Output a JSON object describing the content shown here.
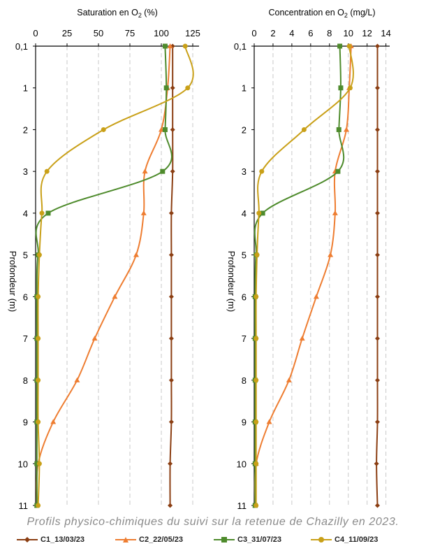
{
  "colors": {
    "C1": "#8b3e12",
    "C2": "#ee7d31",
    "C3": "#4e8b2c",
    "C4": "#c9a018",
    "grid": "#c8c8c8"
  },
  "chart_data": [
    {
      "type": "line",
      "title": "Saturation en O₂ (%)",
      "xlabel": "Saturation en O₂ (%)",
      "ylabel": "Profondeur (m)",
      "xlim": [
        0,
        130
      ],
      "x_ticks": [
        0,
        25,
        50,
        75,
        100,
        125
      ],
      "x_tick_labels": [
        "0",
        "25",
        "50",
        "75",
        "100",
        "125"
      ],
      "y_categories": [
        "0,1",
        "1",
        "2",
        "3",
        "4",
        "5",
        "6",
        "7",
        "8",
        "9",
        "10",
        "11"
      ],
      "grid": "vertical dashed",
      "series": [
        {
          "name": "C1_13/03/23",
          "marker": "diamond",
          "values": [
            109,
            109,
            109,
            109,
            108,
            108,
            108,
            108,
            108,
            108,
            107,
            107
          ]
        },
        {
          "name": "C2_22/05/23",
          "marker": "triangle",
          "values": [
            107,
            105,
            100,
            87,
            86,
            80,
            63,
            47,
            33,
            14,
            2,
            1
          ]
        },
        {
          "name": "C3_31/07/23",
          "marker": "square",
          "values": [
            103,
            104,
            103,
            101,
            10,
            2,
            1,
            1,
            1,
            1,
            1,
            1
          ]
        },
        {
          "name": "C4_11/09/23",
          "marker": "circle",
          "values": [
            119,
            121,
            54,
            9,
            5,
            3,
            2,
            2,
            2,
            2,
            3,
            2
          ]
        }
      ]
    },
    {
      "type": "line",
      "title": "Concentration en O₂ (mg/L)",
      "xlabel": "Concentration en O₂ (mg/L)",
      "ylabel": "Profondeur (m)",
      "xlim": [
        0,
        14.4
      ],
      "x_ticks": [
        0,
        2,
        4,
        6,
        8,
        10,
        12,
        14
      ],
      "x_tick_labels": [
        "0",
        "2",
        "4",
        "6",
        "8",
        "10",
        "12",
        "14"
      ],
      "y_categories": [
        "0,1",
        "1",
        "2",
        "3",
        "4",
        "5",
        "6",
        "7",
        "8",
        "9",
        "10",
        "11"
      ],
      "grid": "vertical dashed",
      "series": [
        {
          "name": "C1_13/03/23",
          "marker": "diamond",
          "values": [
            13.1,
            13.1,
            13.1,
            13.1,
            13.1,
            13.1,
            13.1,
            13.1,
            13.1,
            13.1,
            13.0,
            13.1
          ]
        },
        {
          "name": "C2_22/05/23",
          "marker": "triangle",
          "values": [
            10.3,
            10.1,
            9.8,
            8.6,
            8.6,
            8.1,
            6.6,
            5.1,
            3.7,
            1.6,
            0.2,
            0.1
          ]
        },
        {
          "name": "C3_31/07/23",
          "marker": "square",
          "values": [
            9.1,
            9.2,
            9.0,
            8.9,
            0.9,
            0.2,
            0.1,
            0.1,
            0.1,
            0.1,
            0.1,
            0.1
          ]
        },
        {
          "name": "C4_11/09/23",
          "marker": "circle",
          "values": [
            10.1,
            10.2,
            5.3,
            0.8,
            0.5,
            0.3,
            0.2,
            0.2,
            0.2,
            0.2,
            0.2,
            0.2
          ]
        }
      ]
    }
  ],
  "caption": "Profils physico-chimiques du suivi sur la retenue de Chazilly en 2023.",
  "legend": [
    {
      "label": "C1_13/03/23",
      "color": "#8b3e12",
      "marker": "diamond"
    },
    {
      "label": "C2_22/05/23",
      "color": "#ee7d31",
      "marker": "triangle"
    },
    {
      "label": "C3_31/07/23",
      "color": "#4e8b2c",
      "marker": "square"
    },
    {
      "label": "C4_11/09/23",
      "color": "#c9a018",
      "marker": "circle"
    }
  ]
}
